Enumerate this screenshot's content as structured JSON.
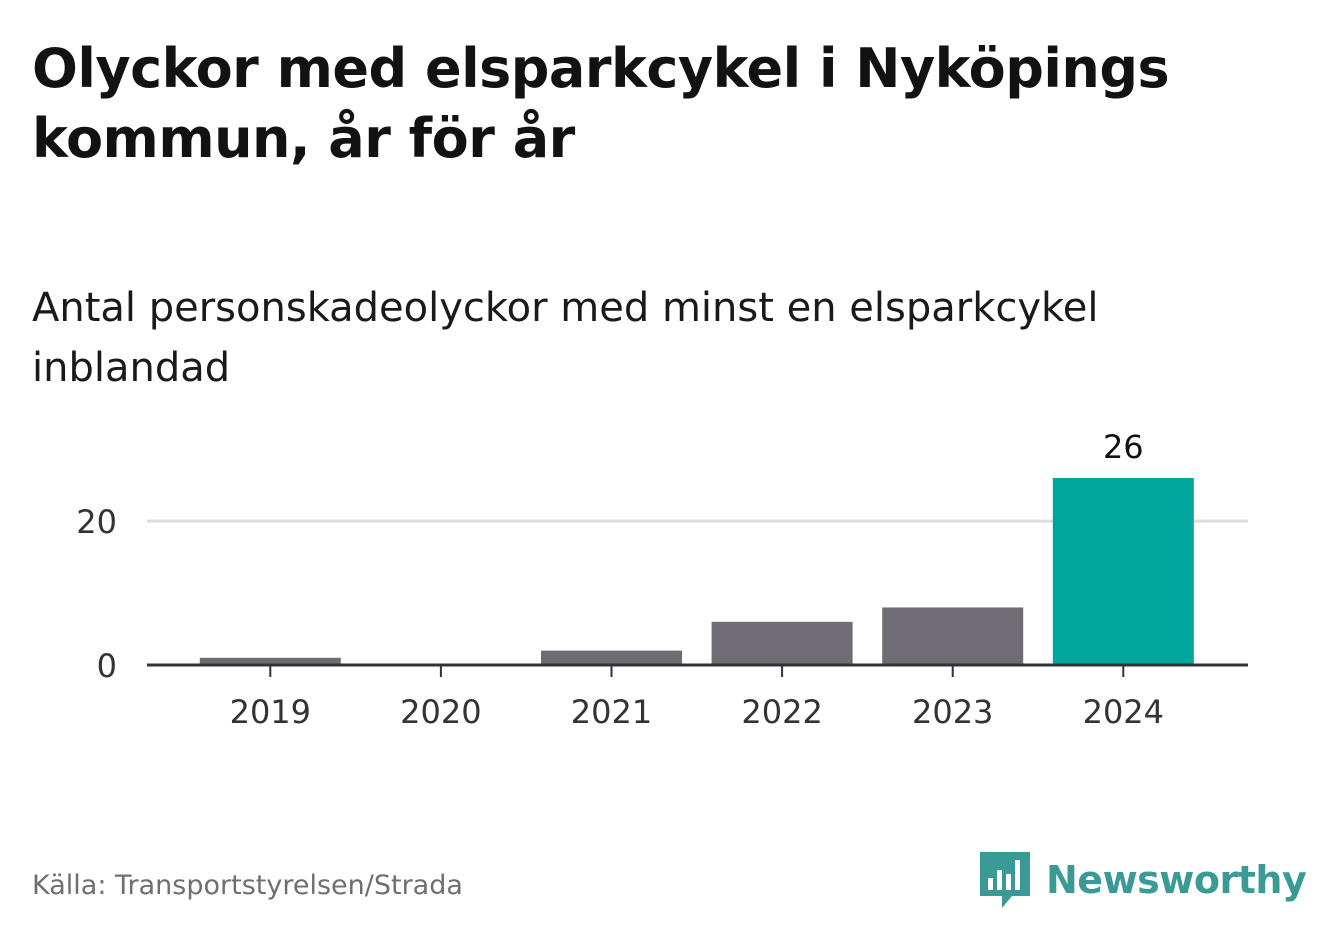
{
  "title": "Olyckor med elsparkcykel i Nyköpings kommun, år för år",
  "subtitle": "Antal personskadeolyckor med minst en elsparkcykel inblandad",
  "source": "Källa: Transportstyrelsen/Strada",
  "brand": {
    "name": "Newsworthy",
    "icon": "newsworthy-logo-icon",
    "color": "#3a9b96"
  },
  "chart_data": {
    "type": "bar",
    "categories": [
      "2019",
      "2020",
      "2021",
      "2022",
      "2023",
      "2024"
    ],
    "values": [
      1,
      0,
      2,
      6,
      8,
      26
    ],
    "data_labels": [
      {
        "category": "2024",
        "text": "26"
      }
    ],
    "yticks": [
      0,
      20
    ],
    "ylim": [
      0,
      26
    ],
    "grid": true,
    "legend": "none",
    "colors": {
      "default": "#6f6d73",
      "highlight": "#00a59b"
    },
    "highlight_category": "2024"
  }
}
